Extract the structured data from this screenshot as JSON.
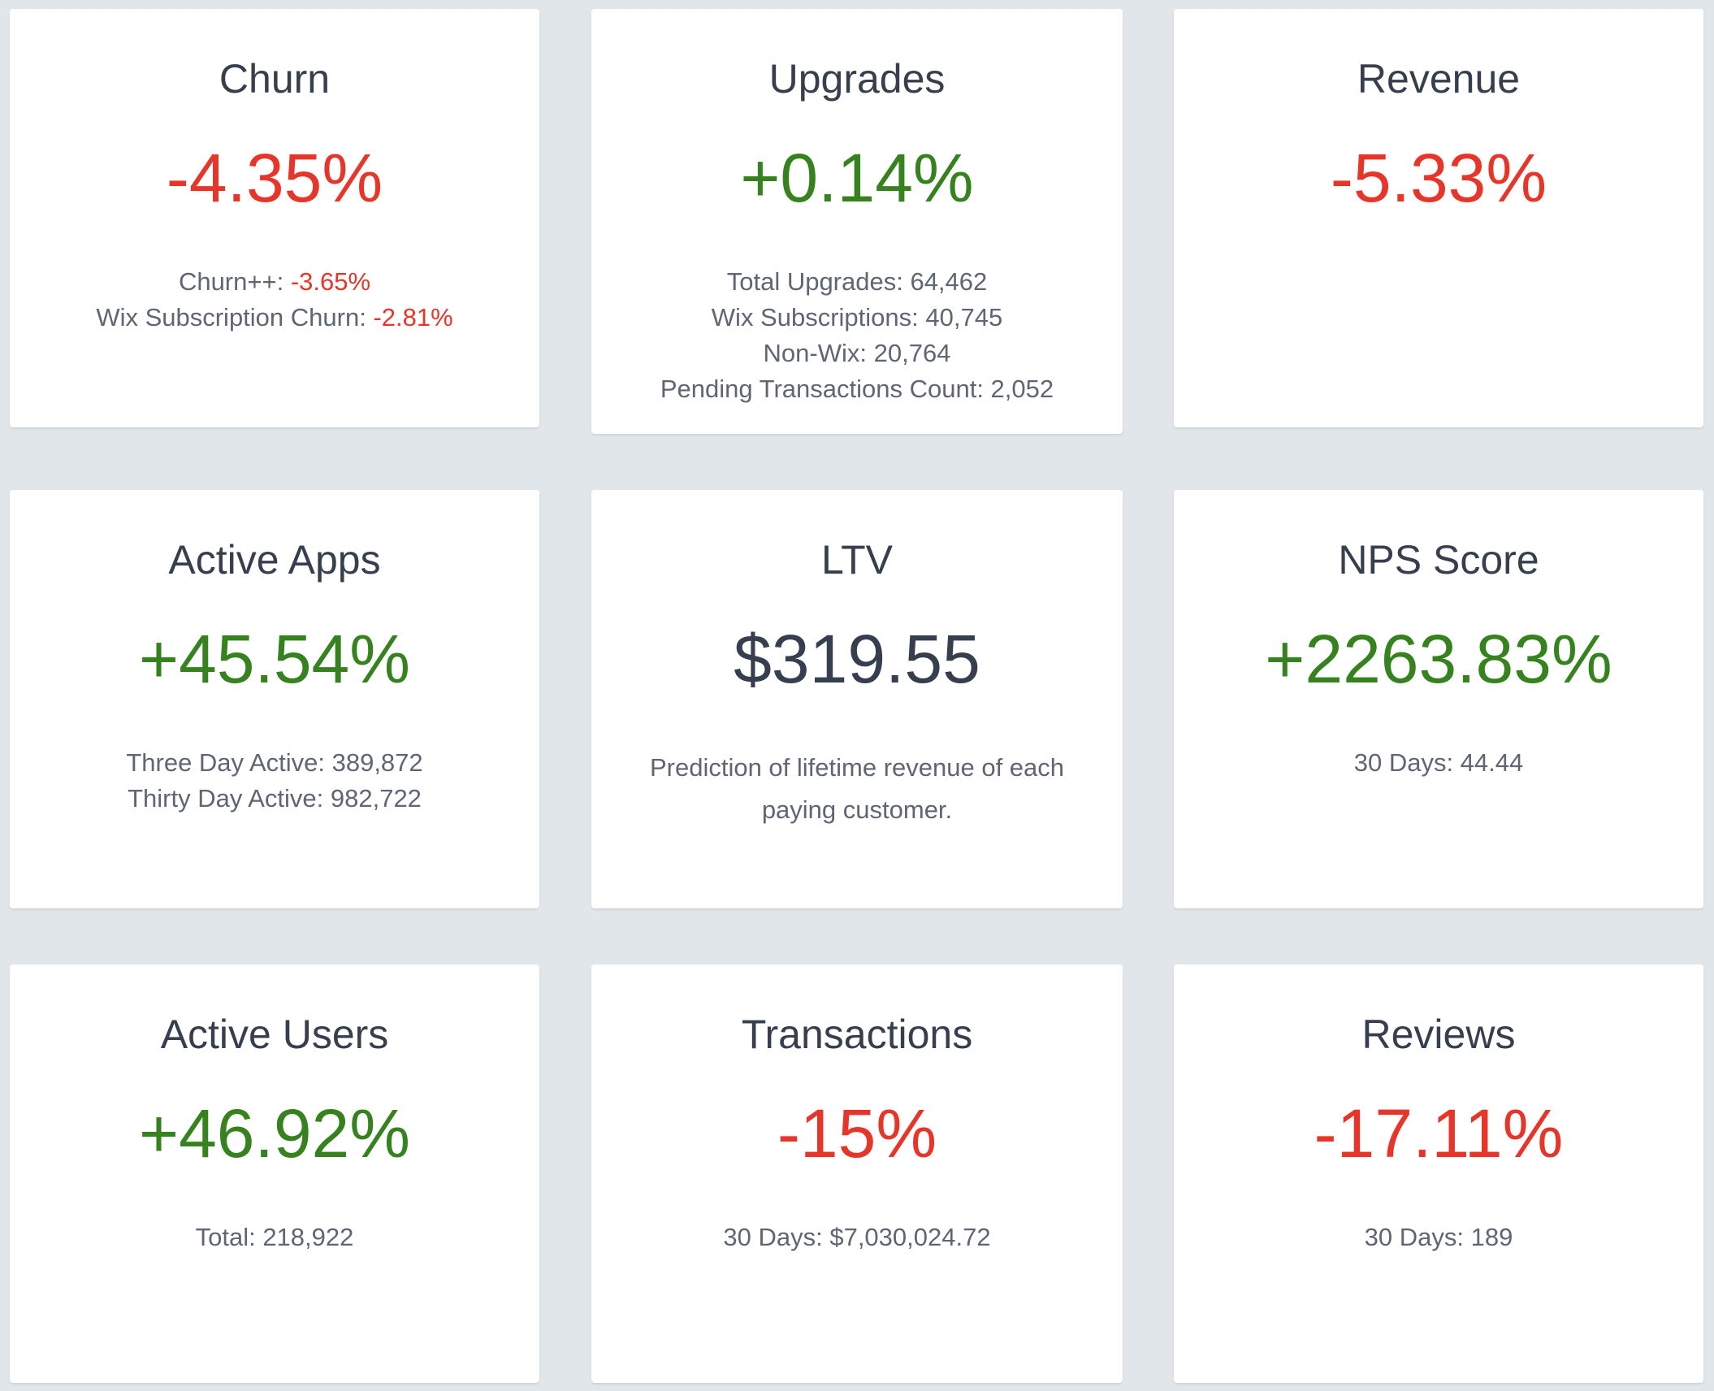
{
  "colors": {
    "negative": "#e8352a",
    "positive": "#35821e",
    "neutral": "#363f4e",
    "background": "#e1e6ea"
  },
  "cards": [
    {
      "title": "Churn",
      "value": "-4.35%",
      "lines": [
        {
          "label": "Churn++: ",
          "value": "-3.65%"
        },
        {
          "label": "Wix Subscription Churn: ",
          "value": "-2.81%"
        }
      ]
    },
    {
      "title": "Upgrades",
      "value": "+0.14%",
      "lines": [
        "Total Upgrades: 64,462",
        "Wix Subscriptions: 40,745",
        "Non-Wix: 20,764",
        "Pending Transactions Count: 2,052"
      ]
    },
    {
      "title": "Revenue",
      "value": "-5.33%"
    },
    {
      "title": "Active Apps",
      "value": "+45.54%",
      "lines": [
        "Three Day Active: 389,872",
        "Thirty Day Active: 982,722"
      ]
    },
    {
      "title": "LTV",
      "value": "$319.55",
      "description": "Prediction of lifetime revenue of each paying customer."
    },
    {
      "title": "NPS Score",
      "value": "+2263.83%",
      "lines": [
        "30 Days: 44.44"
      ]
    },
    {
      "title": "Active Users",
      "value": "+46.92%",
      "lines": [
        "Total: 218,922"
      ]
    },
    {
      "title": "Transactions",
      "value": "-15%",
      "lines": [
        "30 Days: $7,030,024.72"
      ]
    },
    {
      "title": "Reviews",
      "value": "-17.11%",
      "lines": [
        "30 Days: 189"
      ]
    }
  ]
}
